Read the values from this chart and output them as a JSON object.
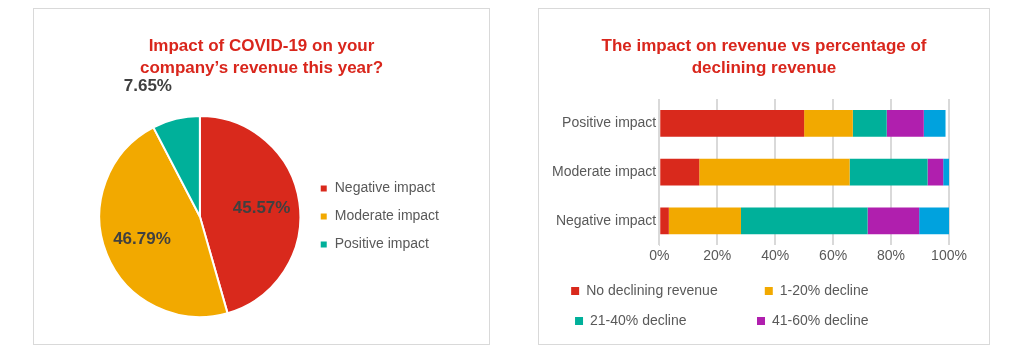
{
  "chart_data": [
    {
      "type": "pie",
      "title": "Impact of COVID-19 on your company’s revenue this year?",
      "categories": [
        "Negative impact",
        "Moderate impact",
        "Positive impact"
      ],
      "values": [
        45.57,
        46.79,
        7.65
      ],
      "colors": [
        "#d9291c",
        "#f2a900",
        "#00b09a"
      ],
      "value_labels": [
        "45.57%",
        "46.79%",
        "7.65%"
      ],
      "legend": "right"
    },
    {
      "type": "bar",
      "title": "The impact on revenue vs percentage of declining revenue",
      "orientation": "horizontal",
      "stacked": true,
      "categories": [
        "Positive impact",
        "Moderate impact",
        "Negative impact"
      ],
      "series": [
        {
          "name": "No declining revenue",
          "color": "#d9291c",
          "values": [
            50,
            13.8,
            3.3
          ]
        },
        {
          "name": "1-20% decline",
          "color": "#f2a900",
          "values": [
            16.8,
            51.9,
            24.9
          ]
        },
        {
          "name": "21-40% decline",
          "color": "#00b09a",
          "values": [
            11.7,
            26.9,
            43.7
          ]
        },
        {
          "name": "41-60% decline",
          "color": "#b01fae",
          "values": [
            12.8,
            5.4,
            17.8
          ]
        },
        {
          "color": "#00a2de",
          "values": [
            7.5,
            2.0,
            10.3
          ]
        }
      ],
      "xlim": [
        0,
        100
      ],
      "xticks": [
        {
          "value": 0,
          "label": "0%"
        },
        {
          "value": 20,
          "label": "20%"
        },
        {
          "value": 40,
          "label": "40%"
        },
        {
          "value": 60,
          "label": "60%"
        },
        {
          "value": 80,
          "label": "80%"
        },
        {
          "value": 100,
          "label": "100%"
        }
      ],
      "grid": "x",
      "legend": "bottom"
    }
  ]
}
